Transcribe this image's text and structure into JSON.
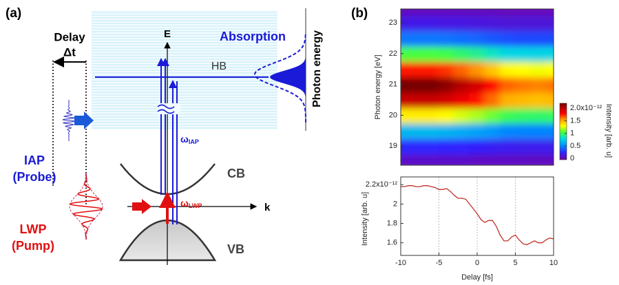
{
  "panel_a": {
    "label": "(a)",
    "delay": "Delay",
    "delta_t": "Δt",
    "e_axis": "E",
    "k_axis": "k",
    "hb": "HB",
    "absorption": "Absorption",
    "photon_energy": "Photon energy",
    "cb": "CB",
    "vb": "VB",
    "omega_iap": {
      "symbol": "ω",
      "subscript": "IAP"
    },
    "omega_lwp": {
      "symbol": "ω",
      "subscript": "LWP"
    },
    "iap": "IAP",
    "probe": "(Probe)",
    "lwp": "LWP",
    "pump": "(Pump)"
  },
  "panel_b": {
    "label": "(b)"
  },
  "chart_data": [
    {
      "type": "heatmap",
      "ylabel": "Photon energy [eV]",
      "colorbar_label": "Intensity [arb. u]",
      "x": [
        -10,
        -8,
        -6,
        -4,
        -2,
        0,
        2,
        4,
        6,
        8,
        10
      ],
      "y": [
        18.5,
        19,
        19.5,
        20,
        20.5,
        21,
        21.5,
        22,
        22.5,
        23,
        23.5
      ],
      "z": [
        [
          0.06,
          0.06,
          0.06,
          0.06,
          0.06,
          0.05,
          0.05,
          0.05,
          0.05,
          0.04,
          0.05
        ],
        [
          0.24,
          0.24,
          0.24,
          0.23,
          0.22,
          0.21,
          0.19,
          0.18,
          0.17,
          0.17,
          0.17
        ],
        [
          0.66,
          0.66,
          0.66,
          0.64,
          0.61,
          0.58,
          0.54,
          0.49,
          0.48,
          0.48,
          0.48
        ],
        [
          1.34,
          1.34,
          1.34,
          1.31,
          1.24,
          1.18,
          1.09,
          1.0,
          0.98,
          0.97,
          0.98
        ],
        [
          1.99,
          1.99,
          1.99,
          1.95,
          1.86,
          1.77,
          1.63,
          1.49,
          1.47,
          1.45,
          1.47
        ],
        [
          2.19,
          2.19,
          2.19,
          2.14,
          2.04,
          1.94,
          1.79,
          1.64,
          1.61,
          1.59,
          1.61
        ],
        [
          1.76,
          1.76,
          1.76,
          1.72,
          1.64,
          1.56,
          1.44,
          1.32,
          1.3,
          1.28,
          1.3
        ],
        [
          1.04,
          1.04,
          1.04,
          1.02,
          0.97,
          0.92,
          0.85,
          0.78,
          0.77,
          0.76,
          0.77
        ],
        [
          0.45,
          0.45,
          0.45,
          0.44,
          0.42,
          0.4,
          0.37,
          0.34,
          0.33,
          0.33,
          0.33
        ],
        [
          0.15,
          0.15,
          0.15,
          0.14,
          0.14,
          0.13,
          0.12,
          0.11,
          0.11,
          0.11,
          0.11
        ],
        [
          0.03,
          0.03,
          0.03,
          0.03,
          0.03,
          0.03,
          0.03,
          0.02,
          0.02,
          0.02,
          0.02
        ]
      ],
      "xlim": [
        -10,
        10
      ],
      "ylim": [
        18.38,
        23.45
      ],
      "yticks": [
        19,
        20,
        21,
        22,
        23
      ],
      "zlim": [
        -0.05,
        2.2
      ],
      "zticks": [
        0.0,
        0.5,
        1.0,
        1.5,
        {
          "value": 2.0,
          "label": "2.0x10⁻¹²"
        }
      ]
    },
    {
      "type": "line",
      "xlabel": "Delay [fs]",
      "ylabel": "Intensity [arb. u]",
      "color": "#c0302a",
      "x": [
        -10,
        -9.5,
        -9,
        -8.5,
        -8,
        -7.5,
        -7,
        -6.5,
        -6,
        -5.5,
        -5,
        -4.5,
        -4,
        -3.5,
        -3,
        -2.5,
        -2,
        -1.5,
        -1,
        -0.5,
        0,
        0.5,
        1,
        1.5,
        2,
        2.5,
        3,
        3.5,
        4,
        4.5,
        5,
        5.5,
        6,
        6.5,
        7,
        7.5,
        8,
        8.5,
        9,
        9.5,
        10
      ],
      "values": [
        2.18,
        2.18,
        2.19,
        2.19,
        2.18,
        2.18,
        2.19,
        2.19,
        2.18,
        2.17,
        2.15,
        2.15,
        2.16,
        2.13,
        2.09,
        2.06,
        2.06,
        2.05,
        2.0,
        1.95,
        1.9,
        1.84,
        1.81,
        1.83,
        1.83,
        1.77,
        1.68,
        1.62,
        1.62,
        1.66,
        1.68,
        1.63,
        1.59,
        1.58,
        1.6,
        1.62,
        1.6,
        1.6,
        1.63,
        1.65,
        1.64
      ],
      "xlim": [
        -10,
        10
      ],
      "xticks": [
        -10,
        -5,
        0,
        5,
        10
      ],
      "ylim": [
        1.47,
        2.28
      ],
      "yticks": [
        1.6,
        1.8,
        2.0,
        {
          "value": 2.2,
          "label": "2.2x10⁻¹²"
        }
      ],
      "grid": true
    }
  ]
}
